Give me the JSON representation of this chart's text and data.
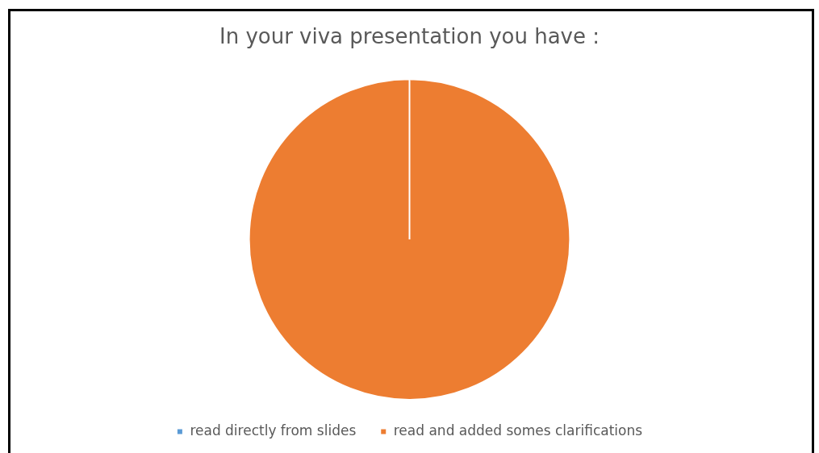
{
  "chart_data": {
    "type": "pie",
    "title": "In your viva presentation you have :",
    "categories": [
      "read directly from slides",
      "read and added somes clarifications"
    ],
    "values": [
      0,
      100
    ],
    "colors": [
      "#5b9bd5",
      "#ed7d31"
    ],
    "legend": "bottom"
  }
}
